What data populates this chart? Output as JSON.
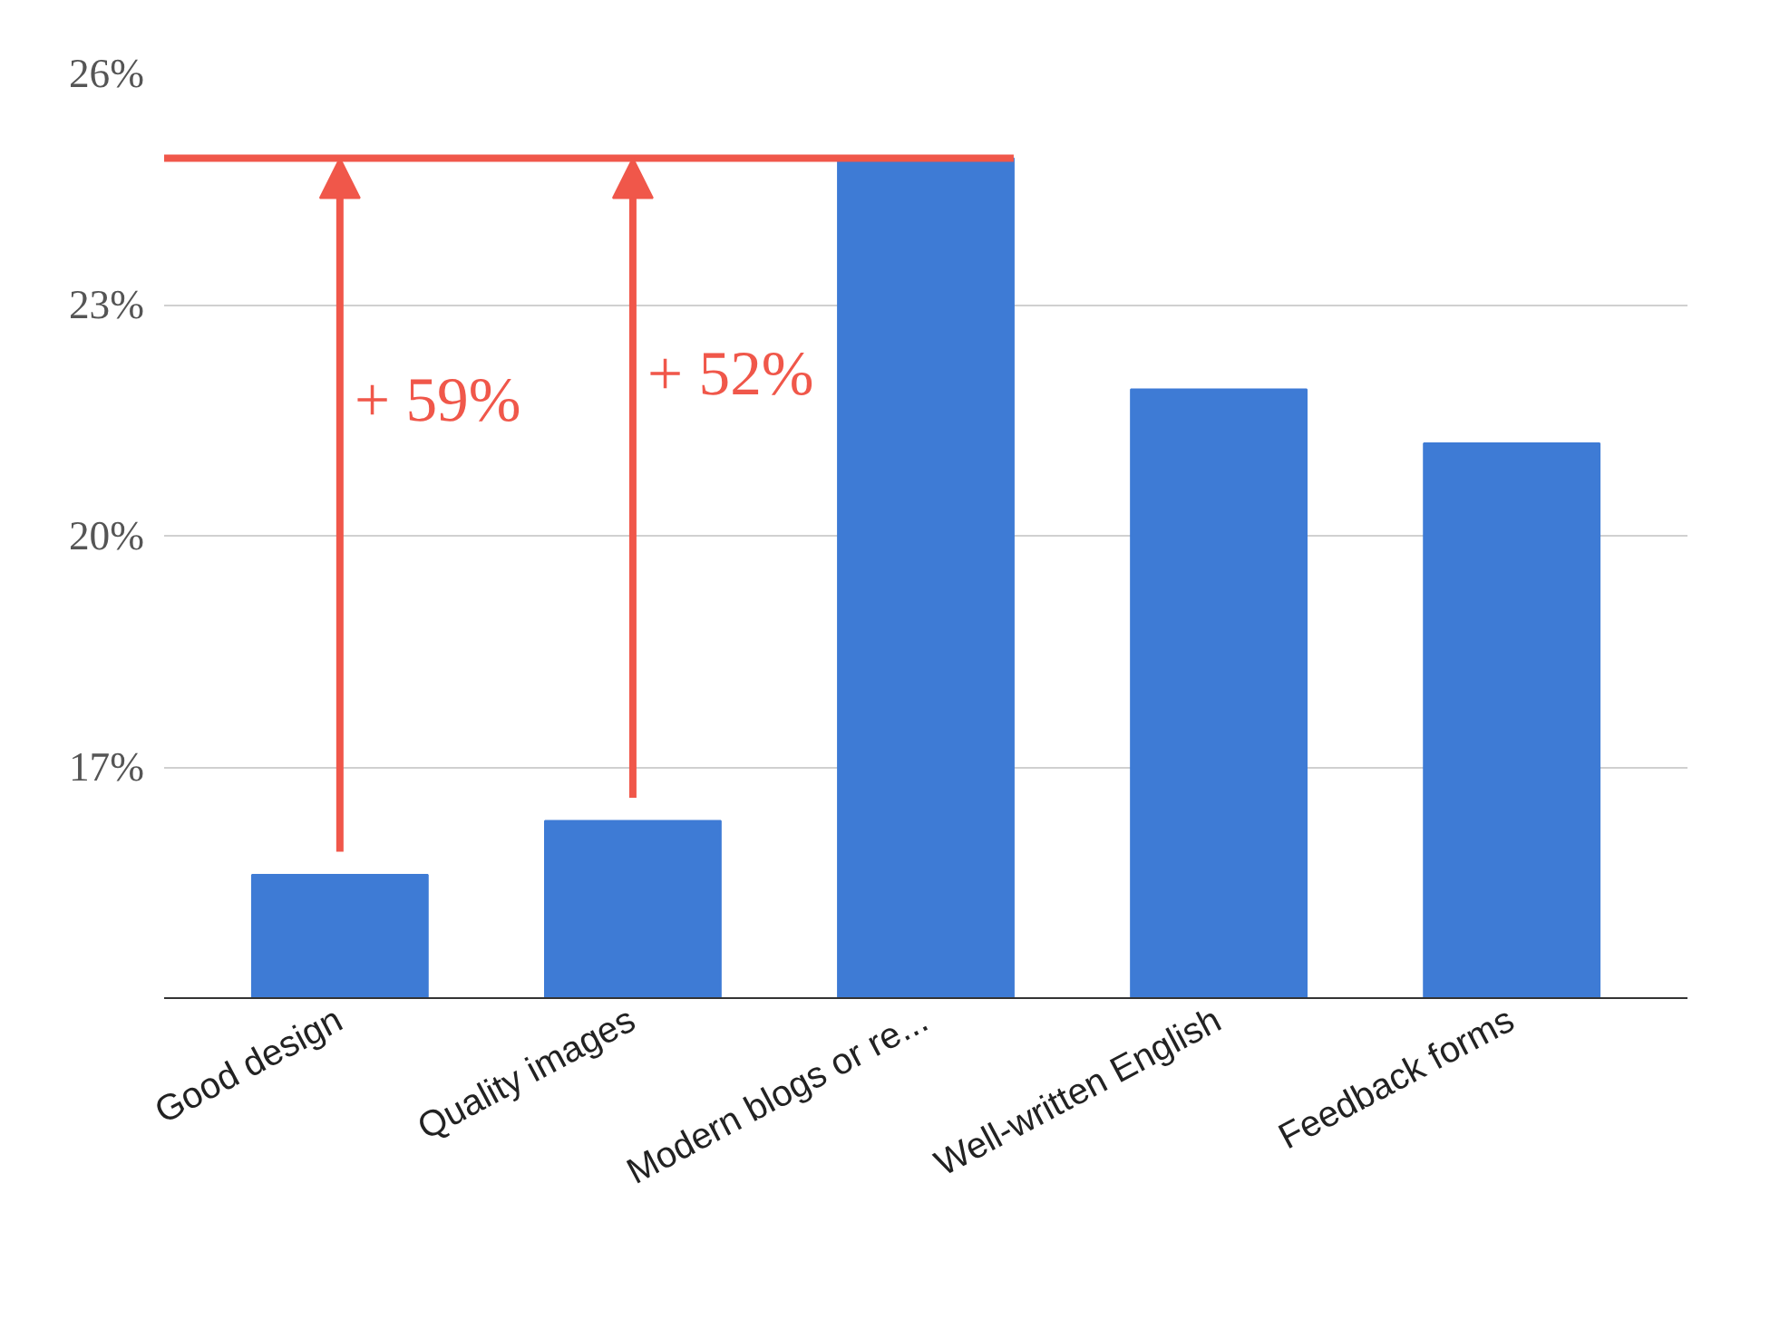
{
  "chart_data": {
    "type": "bar",
    "categories": [
      "Good design",
      "Quality images",
      "Modern blogs or re...",
      "Well-written English",
      "Feedback forms"
    ],
    "values": [
      15.6,
      16.3,
      24.9,
      21.9,
      21.2
    ],
    "color": "#3e7bd5",
    "ylim": [
      14,
      26
    ],
    "yticks": [
      {
        "value": 17,
        "label": "17%"
      },
      {
        "value": 20,
        "label": "20%"
      },
      {
        "value": 23,
        "label": "23%"
      },
      {
        "value": 26,
        "label": "26%"
      }
    ],
    "grid": "y",
    "ref_lines": [
      {
        "axis": "y",
        "value": 24.9,
        "color": "#f0574a"
      }
    ],
    "annotations": [
      "+ 59%",
      "+ 52%"
    ]
  }
}
